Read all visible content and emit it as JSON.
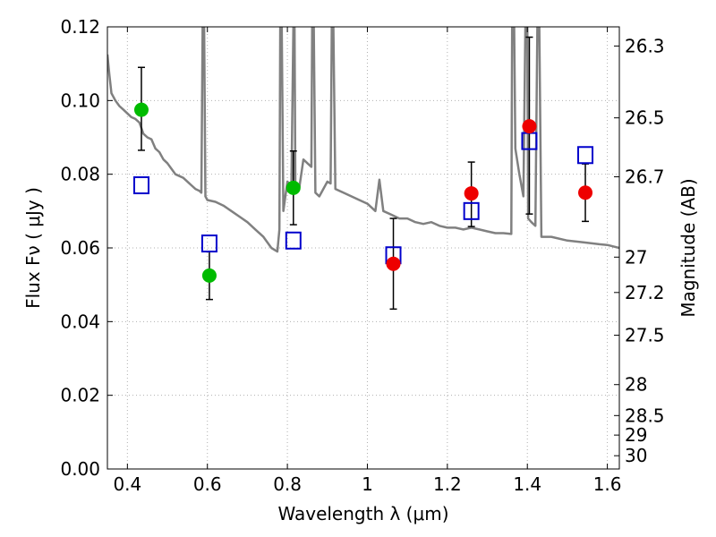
{
  "chart_data": {
    "type": "scatter",
    "xlabel": "Wavelength  λ (μm)",
    "ylabel": "Flux  Fν  ( μJy )",
    "ylabel_right": "Magnitude (AB)",
    "xlim": [
      0.35,
      1.63
    ],
    "ylim": [
      0,
      0.12
    ],
    "x_ticks": [
      0.4,
      0.6,
      0.8,
      1.0,
      1.2,
      1.4,
      1.6
    ],
    "x_tick_labels": [
      "0.4",
      "0.6",
      "0.8",
      "1",
      "1.2",
      "1.4",
      "1.6"
    ],
    "y_ticks": [
      0,
      0.02,
      0.04,
      0.06,
      0.08,
      0.1,
      0.12
    ],
    "y_tick_labels": [
      "0.00",
      "0.02",
      "0.04",
      "0.06",
      "0.08",
      "0.10",
      "0.12"
    ],
    "right_ticks": [
      {
        "flux": 0.1148,
        "label": "26.3"
      },
      {
        "flux": 0.0953,
        "label": "26.5"
      },
      {
        "flux": 0.0793,
        "label": "26.7"
      },
      {
        "flux": 0.0575,
        "label": "27"
      },
      {
        "flux": 0.0479,
        "label": "27.2"
      },
      {
        "flux": 0.0363,
        "label": "27.5"
      },
      {
        "flux": 0.0229,
        "label": "28"
      },
      {
        "flux": 0.0145,
        "label": "28.5"
      },
      {
        "flux": 0.0092,
        "label": "29"
      },
      {
        "flux": 0.0036,
        "label": "30"
      }
    ],
    "grid": true,
    "colors": {
      "sed": "#808080",
      "model": "#0000cc",
      "green": "#00bb00",
      "red": "#ee0000",
      "errorbar": "#000000",
      "grid": "#b0b0b0"
    },
    "series": [
      {
        "marker": "line",
        "points": [
          [
            0.35,
            0.1125
          ],
          [
            0.355,
            0.107
          ],
          [
            0.36,
            0.102
          ],
          [
            0.37,
            0.1
          ],
          [
            0.38,
            0.0985
          ],
          [
            0.39,
            0.0975
          ],
          [
            0.4,
            0.0965
          ],
          [
            0.41,
            0.0955
          ],
          [
            0.42,
            0.095
          ],
          [
            0.43,
            0.094
          ],
          [
            0.44,
            0.091
          ],
          [
            0.45,
            0.09
          ],
          [
            0.46,
            0.0895
          ],
          [
            0.47,
            0.087
          ],
          [
            0.48,
            0.086
          ],
          [
            0.49,
            0.084
          ],
          [
            0.5,
            0.083
          ],
          [
            0.51,
            0.0815
          ],
          [
            0.52,
            0.08
          ],
          [
            0.53,
            0.0795
          ],
          [
            0.54,
            0.079
          ],
          [
            0.55,
            0.078
          ],
          [
            0.56,
            0.077
          ],
          [
            0.57,
            0.076
          ],
          [
            0.58,
            0.0755
          ],
          [
            0.585,
            0.075
          ],
          [
            0.588,
            0.12
          ],
          [
            0.592,
            0.12
          ],
          [
            0.595,
            0.074
          ],
          [
            0.6,
            0.073
          ],
          [
            0.62,
            0.0725
          ],
          [
            0.64,
            0.0715
          ],
          [
            0.66,
            0.07
          ],
          [
            0.68,
            0.0685
          ],
          [
            0.7,
            0.067
          ],
          [
            0.72,
            0.065
          ],
          [
            0.74,
            0.063
          ],
          [
            0.76,
            0.06
          ],
          [
            0.775,
            0.059
          ],
          [
            0.78,
            0.065
          ],
          [
            0.782,
            0.12
          ],
          [
            0.786,
            0.12
          ],
          [
            0.79,
            0.07
          ],
          [
            0.8,
            0.078
          ],
          [
            0.81,
            0.077
          ],
          [
            0.815,
            0.12
          ],
          [
            0.818,
            0.12
          ],
          [
            0.82,
            0.078
          ],
          [
            0.83,
            0.0765
          ],
          [
            0.84,
            0.084
          ],
          [
            0.85,
            0.083
          ],
          [
            0.86,
            0.082
          ],
          [
            0.862,
            0.12
          ],
          [
            0.866,
            0.12
          ],
          [
            0.87,
            0.075
          ],
          [
            0.88,
            0.074
          ],
          [
            0.89,
            0.076
          ],
          [
            0.9,
            0.078
          ],
          [
            0.908,
            0.0775
          ],
          [
            0.911,
            0.12
          ],
          [
            0.915,
            0.12
          ],
          [
            0.92,
            0.076
          ],
          [
            0.94,
            0.075
          ],
          [
            0.96,
            0.074
          ],
          [
            0.98,
            0.073
          ],
          [
            1.0,
            0.072
          ],
          [
            1.02,
            0.07
          ],
          [
            1.03,
            0.0785
          ],
          [
            1.04,
            0.07
          ],
          [
            1.06,
            0.069
          ],
          [
            1.08,
            0.068
          ],
          [
            1.1,
            0.068
          ],
          [
            1.12,
            0.067
          ],
          [
            1.14,
            0.0665
          ],
          [
            1.16,
            0.067
          ],
          [
            1.18,
            0.066
          ],
          [
            1.2,
            0.0655
          ],
          [
            1.22,
            0.0655
          ],
          [
            1.24,
            0.065
          ],
          [
            1.26,
            0.0655
          ],
          [
            1.28,
            0.065
          ],
          [
            1.3,
            0.0645
          ],
          [
            1.32,
            0.064
          ],
          [
            1.34,
            0.064
          ],
          [
            1.36,
            0.0638
          ],
          [
            1.362,
            0.12
          ],
          [
            1.367,
            0.12
          ],
          [
            1.37,
            0.087
          ],
          [
            1.38,
            0.08
          ],
          [
            1.39,
            0.074
          ],
          [
            1.395,
            0.12
          ],
          [
            1.4,
            0.12
          ],
          [
            1.402,
            0.068
          ],
          [
            1.41,
            0.067
          ],
          [
            1.42,
            0.066
          ],
          [
            1.425,
            0.12
          ],
          [
            1.43,
            0.12
          ],
          [
            1.435,
            0.063
          ],
          [
            1.46,
            0.063
          ],
          [
            1.5,
            0.062
          ],
          [
            1.54,
            0.0615
          ],
          [
            1.58,
            0.061
          ],
          [
            1.6,
            0.0608
          ],
          [
            1.63,
            0.06
          ]
        ]
      },
      {
        "marker": "open-square",
        "points": [
          [
            0.435,
            0.077
          ],
          [
            0.605,
            0.0612
          ],
          [
            0.815,
            0.062
          ],
          [
            1.065,
            0.058
          ],
          [
            1.26,
            0.07
          ],
          [
            1.405,
            0.089
          ],
          [
            1.545,
            0.0852
          ]
        ]
      },
      {
        "marker": "filled-circle",
        "color": "green",
        "points": [
          {
            "x": 0.435,
            "y": 0.0975,
            "err_low": 0.011,
            "err_high": 0.0115
          },
          {
            "x": 0.605,
            "y": 0.0525,
            "err_low": 0.0065,
            "err_high": 0.0065
          },
          {
            "x": 0.815,
            "y": 0.0763,
            "err_low": 0.01,
            "err_high": 0.01
          }
        ]
      },
      {
        "marker": "filled-circle",
        "color": "red",
        "points": [
          {
            "x": 1.065,
            "y": 0.0557,
            "err_low": 0.0123,
            "err_high": 0.0123
          },
          {
            "x": 1.26,
            "y": 0.0748,
            "err_low": 0.009,
            "err_high": 0.0085
          },
          {
            "x": 1.405,
            "y": 0.093,
            "err_low": 0.0238,
            "err_high": 0.0242
          },
          {
            "x": 1.545,
            "y": 0.075,
            "err_low": 0.0078,
            "err_high": 0.0078
          }
        ]
      }
    ]
  }
}
